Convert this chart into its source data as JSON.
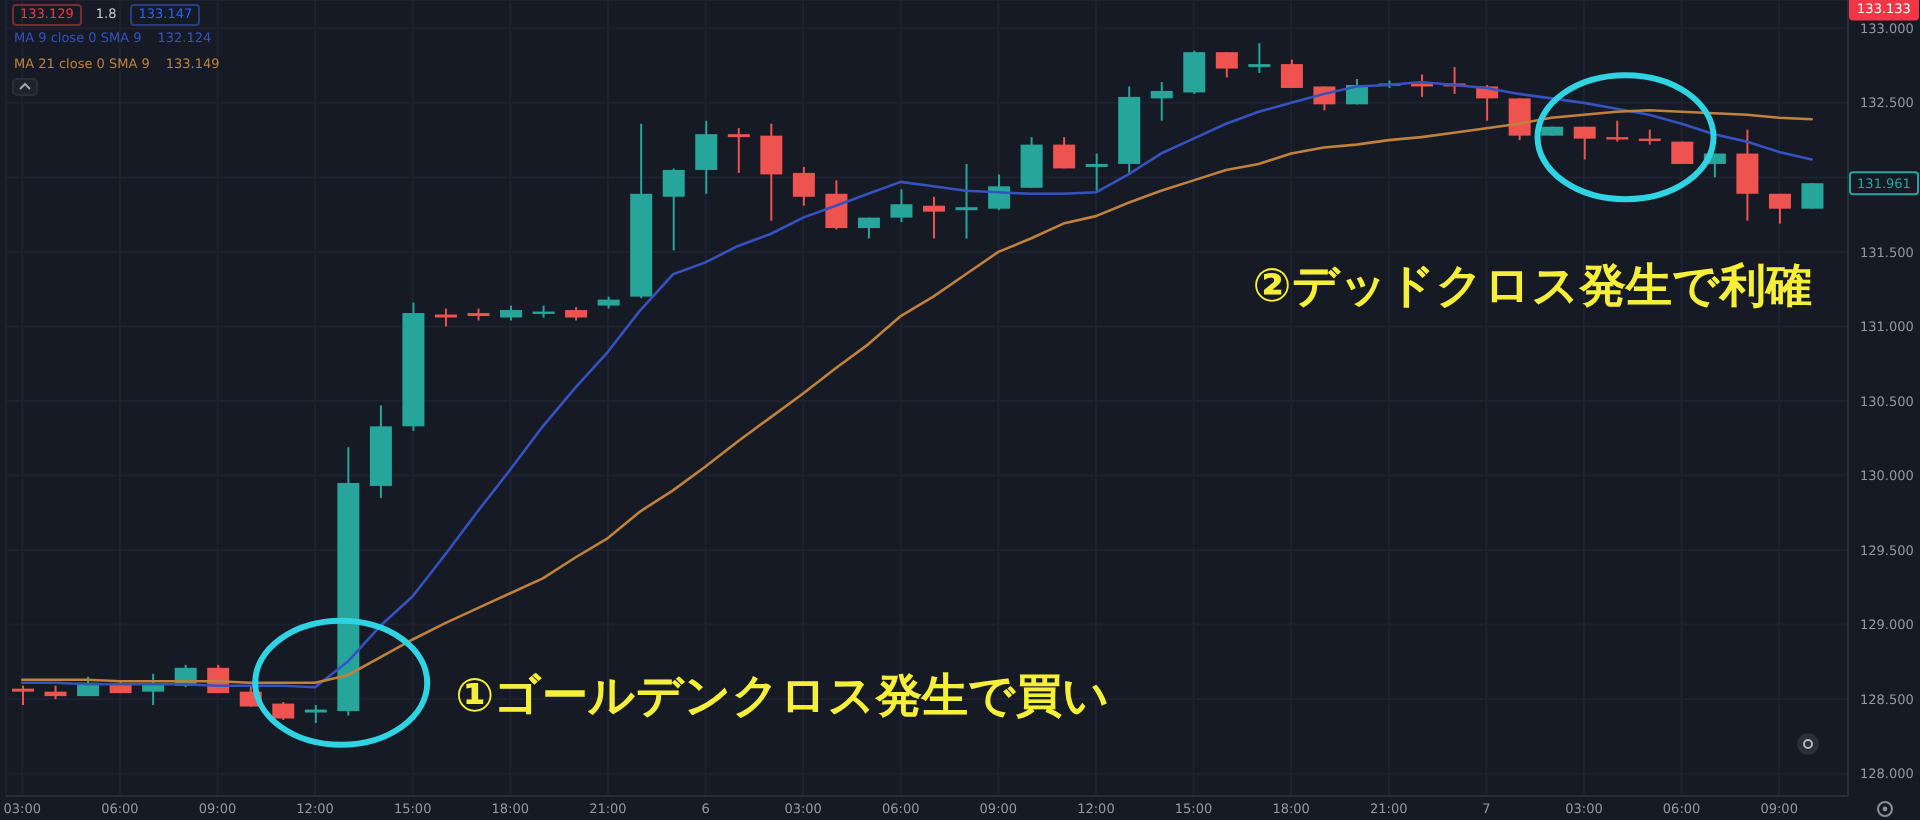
{
  "chart_data": {
    "type": "candlestick",
    "categories": [
      "03:00",
      null,
      null,
      "06:00",
      null,
      null,
      "09:00",
      null,
      null,
      "12:00",
      null,
      null,
      "15:00",
      null,
      null,
      "18:00",
      null,
      null,
      "21:00",
      null,
      null,
      "6",
      null,
      null,
      "03:00",
      null,
      null,
      "06:00",
      null,
      null,
      "09:00",
      null,
      null,
      "12:00",
      null,
      null,
      "15:00",
      null,
      null,
      "18:00",
      null,
      null,
      "21:00",
      null,
      null,
      "7",
      null,
      null,
      "03:00",
      null,
      null,
      "06:00",
      null,
      null,
      "09:00",
      null
    ],
    "ohlc": [
      [
        128.57,
        128.59,
        128.46,
        128.55
      ],
      [
        128.55,
        128.59,
        128.5,
        128.52
      ],
      [
        128.52,
        128.65,
        128.52,
        128.61
      ],
      [
        128.6,
        128.62,
        128.54,
        128.54
      ],
      [
        128.55,
        128.67,
        128.46,
        128.6
      ],
      [
        128.59,
        128.73,
        128.58,
        128.71
      ],
      [
        128.71,
        128.73,
        128.54,
        128.54
      ],
      [
        128.55,
        128.59,
        128.45,
        128.45
      ],
      [
        128.47,
        128.48,
        128.36,
        128.37
      ],
      [
        128.41,
        128.46,
        128.34,
        128.43
      ],
      [
        128.42,
        130.19,
        128.39,
        129.95
      ],
      [
        129.93,
        130.47,
        129.85,
        130.33
      ],
      [
        130.33,
        131.16,
        130.3,
        131.09
      ],
      [
        131.08,
        131.12,
        131.0,
        131.06
      ],
      [
        131.09,
        131.12,
        131.04,
        131.07
      ],
      [
        131.06,
        131.14,
        131.04,
        131.11
      ],
      [
        131.09,
        131.14,
        131.06,
        131.1
      ],
      [
        131.11,
        131.13,
        131.04,
        131.06
      ],
      [
        131.14,
        131.2,
        131.12,
        131.18
      ],
      [
        131.2,
        132.36,
        131.19,
        131.89
      ],
      [
        131.87,
        132.06,
        131.51,
        132.05
      ],
      [
        132.05,
        132.38,
        131.89,
        132.29
      ],
      [
        132.29,
        132.33,
        132.03,
        132.27
      ],
      [
        132.28,
        132.36,
        131.71,
        132.02
      ],
      [
        132.03,
        132.07,
        131.81,
        131.87
      ],
      [
        131.89,
        131.98,
        131.65,
        131.66
      ],
      [
        131.66,
        131.73,
        131.59,
        131.73
      ],
      [
        131.73,
        131.92,
        131.7,
        131.82
      ],
      [
        131.81,
        131.87,
        131.59,
        131.77
      ],
      [
        131.78,
        132.09,
        131.59,
        131.8
      ],
      [
        131.79,
        132.02,
        131.78,
        131.94
      ],
      [
        131.93,
        132.27,
        131.93,
        132.22
      ],
      [
        132.22,
        132.27,
        132.06,
        132.06
      ],
      [
        132.07,
        132.16,
        131.91,
        132.09
      ],
      [
        132.09,
        132.61,
        132.03,
        132.54
      ],
      [
        132.53,
        132.64,
        132.38,
        132.58
      ],
      [
        132.57,
        132.85,
        132.56,
        132.84
      ],
      [
        132.84,
        132.84,
        132.67,
        132.73
      ],
      [
        132.74,
        132.9,
        132.7,
        132.76
      ],
      [
        132.76,
        132.79,
        132.6,
        132.6
      ],
      [
        132.61,
        132.61,
        132.45,
        132.49
      ],
      [
        132.49,
        132.66,
        132.49,
        132.62
      ],
      [
        132.62,
        132.65,
        132.6,
        132.63
      ],
      [
        132.63,
        132.69,
        132.54,
        132.61
      ],
      [
        132.63,
        132.74,
        132.56,
        132.61
      ],
      [
        132.61,
        132.62,
        132.38,
        132.53
      ],
      [
        132.53,
        132.53,
        132.25,
        132.28
      ],
      [
        132.28,
        132.34,
        132.28,
        132.34
      ],
      [
        132.34,
        132.34,
        132.12,
        132.26
      ],
      [
        132.27,
        132.38,
        132.24,
        132.26
      ],
      [
        132.26,
        132.32,
        132.22,
        132.25
      ],
      [
        132.24,
        132.24,
        132.09,
        132.09
      ],
      [
        132.09,
        132.16,
        132.0,
        132.16
      ],
      [
        132.16,
        132.32,
        131.71,
        131.89
      ],
      [
        131.89,
        131.89,
        131.69,
        131.79
      ],
      [
        131.79,
        131.961,
        131.79,
        131.961
      ]
    ],
    "colors": [
      "#ef5350",
      "#ef5350",
      "#26a69a",
      "#ef5350",
      "#26a69a",
      "#26a69a",
      "#ef5350",
      "#ef5350",
      "#ef5350",
      "#26a69a",
      "#26a69a",
      "#26a69a",
      "#26a69a",
      "#ef5350",
      "#ef5350",
      "#26a69a",
      "#26a69a",
      "#ef5350",
      "#26a69a",
      "#26a69a",
      "#26a69a",
      "#26a69a",
      "#ef5350",
      "#ef5350",
      "#ef5350",
      "#ef5350",
      "#26a69a",
      "#26a69a",
      "#ef5350",
      "#26a69a",
      "#26a69a",
      "#26a69a",
      "#ef5350",
      "#26a69a",
      "#26a69a",
      "#26a69a",
      "#26a69a",
      "#ef5350",
      "#26a69a",
      "#ef5350",
      "#ef5350",
      "#26a69a",
      "#26a69a",
      "#ef5350",
      "#ef5350",
      "#ef5350",
      "#ef5350",
      "#26a69a",
      "#ef5350",
      "#ef5350",
      "#ef5350",
      "#ef5350",
      "#26a69a",
      "#ef5350",
      "#ef5350",
      "#26a69a"
    ],
    "value_labels": [
      null,
      null,
      null,
      null,
      null,
      null,
      null,
      null,
      null,
      null,
      null,
      null,
      null,
      null,
      null,
      null,
      null,
      null,
      null,
      null,
      null,
      null,
      null,
      null,
      null,
      null,
      null,
      null,
      null,
      null,
      null,
      null,
      null,
      null,
      null,
      null,
      null,
      null,
      null,
      null,
      null,
      null,
      null,
      null,
      null,
      null,
      null,
      null,
      null,
      null,
      null,
      null,
      null,
      null,
      null,
      "131.961"
    ],
    "series": [
      {
        "name": "MA 9 close 0 SMA 9",
        "type": "line",
        "color": "#3552c0",
        "values": [
          128.61,
          128.61,
          128.6,
          128.6,
          128.6,
          128.6,
          128.59,
          128.59,
          128.59,
          128.58,
          128.75,
          128.99,
          129.19,
          129.47,
          129.76,
          130.04,
          130.33,
          130.59,
          130.83,
          131.11,
          131.35,
          131.43,
          131.54,
          131.62,
          131.73,
          131.81,
          131.89,
          131.97,
          131.94,
          131.91,
          131.9,
          131.89,
          131.89,
          131.9,
          132.02,
          132.16,
          132.26,
          132.36,
          132.44,
          132.5,
          132.56,
          132.61,
          132.62,
          132.64,
          132.62,
          132.6,
          132.56,
          132.53,
          132.5,
          132.46,
          132.42,
          132.36,
          132.29,
          132.24,
          132.17,
          132.12
        ]
      },
      {
        "name": "MA 21 close 0 SMA 9",
        "type": "line",
        "color": "#c0813c",
        "values": [
          128.63,
          128.63,
          128.63,
          128.62,
          128.62,
          128.62,
          128.62,
          128.61,
          128.61,
          128.61,
          128.66,
          128.78,
          128.9,
          129.01,
          129.11,
          129.21,
          129.31,
          129.45,
          129.58,
          129.76,
          129.9,
          130.06,
          130.23,
          130.39,
          130.55,
          130.72,
          130.88,
          131.07,
          131.2,
          131.35,
          131.5,
          131.59,
          131.69,
          131.74,
          131.83,
          131.91,
          131.98,
          132.05,
          132.09,
          132.16,
          132.2,
          132.22,
          132.25,
          132.27,
          132.3,
          132.33,
          132.36,
          132.4,
          132.42,
          132.44,
          132.45,
          132.44,
          132.43,
          132.42,
          132.4,
          132.39
        ]
      }
    ],
    "ylim": [
      127.85,
      133.19
    ],
    "yticks": [
      {
        "value": 128,
        "label": "128.000"
      },
      {
        "value": 128.5,
        "label": "128.500"
      },
      {
        "value": 129,
        "label": "129.000"
      },
      {
        "value": 129.5,
        "label": "129.500"
      },
      {
        "value": 130,
        "label": "130.000"
      },
      {
        "value": 130.5,
        "label": "130.500"
      },
      {
        "value": 131,
        "label": "131.000"
      },
      {
        "value": 131.5,
        "label": "131.500"
      },
      {
        "value": 132,
        "label": null
      },
      {
        "value": 132.5,
        "label": "132.500"
      },
      {
        "value": 133,
        "label": "133.000"
      }
    ],
    "grid": true,
    "legend": "top left",
    "annotations": [
      "133.129",
      "1.8",
      "133.147",
      "132.124",
      "133.149",
      {
        "text": "133.133",
        "y": 133.133
      },
      "①ゴールデンクロス発生で買い",
      "②デッドクロス発生で利確"
    ]
  }
}
